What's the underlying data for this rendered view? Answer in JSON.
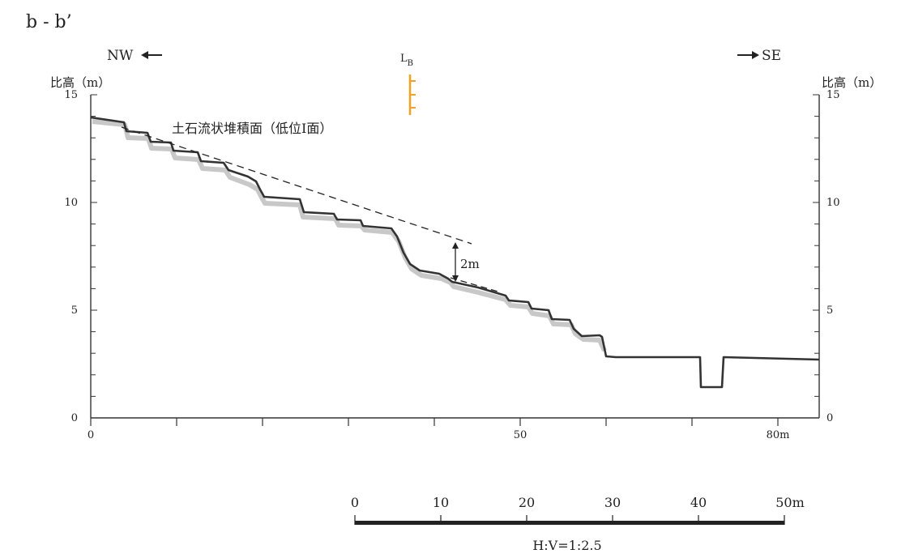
{
  "section_label": "b - b’",
  "directions": {
    "left": "NW",
    "right": "SE"
  },
  "marker": {
    "label_main": "L",
    "label_sub": "B",
    "color": "#f2a11f"
  },
  "axis": {
    "y_title_left": "比高（m）",
    "y_title_right": "比高（m）",
    "y_ticks": [
      "0",
      "5",
      "10",
      "15"
    ],
    "x_ticks": [
      "0",
      "50",
      "80m"
    ]
  },
  "annotations": {
    "surface_label": "土石流状堆積面（低位Ⅰ面）",
    "height_diff": "2m"
  },
  "scale": {
    "ticks": [
      "0",
      "10",
      "20",
      "30",
      "40",
      "50m"
    ],
    "ratio": "H:V=1:2.5"
  },
  "colors": {
    "profile": "#333333",
    "shadow": "#c8c8c8",
    "axis": "#333333"
  }
}
